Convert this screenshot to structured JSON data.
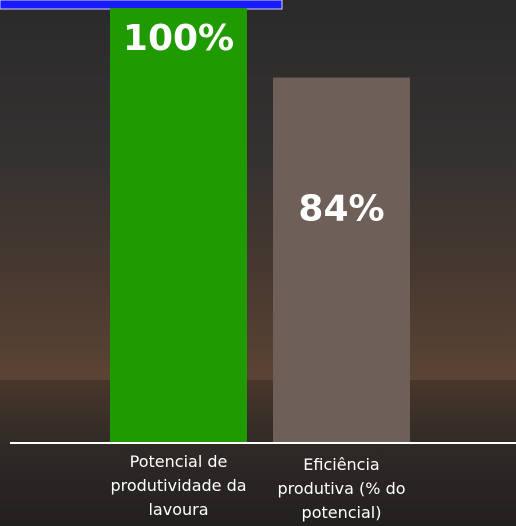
{
  "chart_data": {
    "type": "bar",
    "categories": [
      "Potencial de produtividade da lavoura",
      "Eficiência produtiva (% do potencial)"
    ],
    "values": [
      100,
      84
    ],
    "value_labels": [
      "100%",
      "84%"
    ],
    "colors": [
      "#1f9a00",
      "#6e5f59"
    ],
    "ylim": [
      0,
      100
    ]
  }
}
